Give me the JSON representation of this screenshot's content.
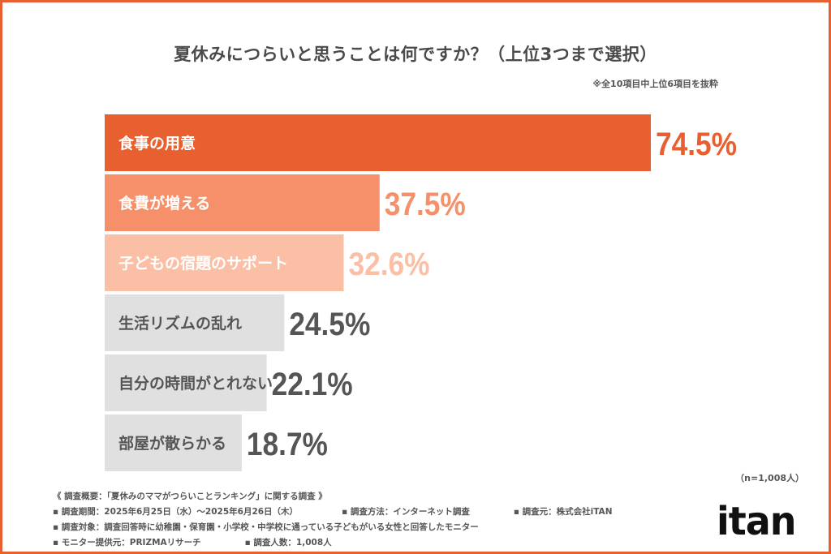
{
  "chart_data": {
    "type": "bar",
    "orientation": "horizontal",
    "title": "夏休みにつらいと思うことは何ですか？（上位3つまで選択）",
    "subtitle": "※全10項目中上位6項目を抜粋",
    "categories": [
      "食事の用意",
      "食費が増える",
      "子どもの宿題のサポート",
      "生活リズムの乱れ",
      "自分の時間がとれない",
      "部屋が散らかる"
    ],
    "values": [
      74.5,
      37.5,
      32.6,
      24.5,
      22.1,
      18.7
    ],
    "value_labels": [
      "74.5%",
      "37.5%",
      "32.6%",
      "24.5%",
      "22.1%",
      "18.7%"
    ],
    "bar_colors": [
      "#e8602f",
      "#f5906a",
      "#fbbfa6",
      "#e0e0e0",
      "#e0e0e0",
      "#e0e0e0"
    ],
    "label_colors": [
      "#ffffff",
      "#ffffff",
      "#ffffff",
      "#555555",
      "#555555",
      "#555555"
    ],
    "value_colors": [
      "#e8602f",
      "#f5906a",
      "#fbbfa6",
      "#555555",
      "#555555",
      "#555555"
    ],
    "xlim": [
      0,
      100
    ],
    "grid": false
  },
  "sample_size": "（n=1,008人）",
  "survey": {
    "heading": "《 調査概要：「夏休みのママがつらいことランキング」に関する調査 》",
    "period": "▪ 調査期間：2025年6月25日（水）～2025年6月26日（木）",
    "method": "▪ 調査方法：インターネット調査",
    "source": "▪ 調査元：株式会社iTAN",
    "target": "▪ 調査対象：調査回答時に幼稚園・保育園・小学校・中学校に通っている子どもがいる女性と回答したモニター",
    "provider": "▪ モニター提供元：PRIZMAリサーチ",
    "count": "▪ 調査人数：1,008人"
  },
  "logo": "itan",
  "accent_color": "#e8602f"
}
